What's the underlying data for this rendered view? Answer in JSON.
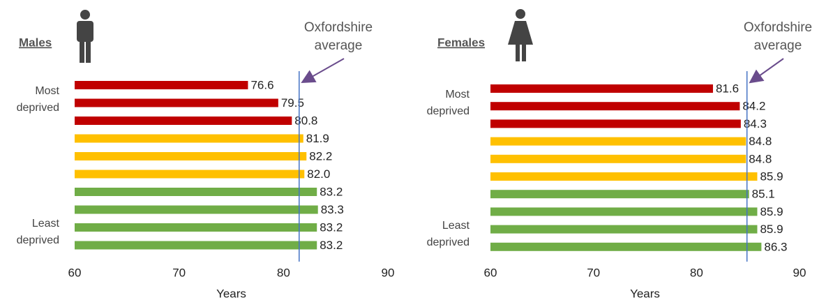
{
  "chart_data": [
    {
      "type": "bar",
      "orientation": "horizontal",
      "title": "Males",
      "categories": [
        null,
        null,
        null,
        null,
        null,
        null,
        null,
        null,
        null,
        null
      ],
      "values": [
        76.6,
        79.5,
        80.8,
        81.9,
        82.2,
        82.0,
        83.2,
        83.3,
        83.2,
        83.2
      ],
      "value_labels": [
        "76.6",
        "79.5",
        "80.8",
        "81.9",
        "82.2",
        "82.0",
        "83.2",
        "83.3",
        "83.2",
        "83.2"
      ],
      "colors": [
        "#c00000",
        "#c00000",
        "#c00000",
        "#ffc000",
        "#ffc000",
        "#ffc000",
        "#70ad47",
        "#70ad47",
        "#70ad47",
        "#70ad47"
      ],
      "top_label": [
        "Most",
        "deprived"
      ],
      "bottom_label": [
        "Least",
        "deprived"
      ],
      "reference_line": {
        "value": 81.5,
        "label": [
          "Oxfordshire",
          "average"
        ],
        "color": "#4472c4"
      },
      "xlim": [
        60,
        90
      ],
      "xticks": [
        60,
        70,
        80,
        90
      ],
      "xlabel": "Years"
    },
    {
      "type": "bar",
      "orientation": "horizontal",
      "title": "Females",
      "categories": [
        null,
        null,
        null,
        null,
        null,
        null,
        null,
        null,
        null,
        null
      ],
      "values": [
        81.6,
        84.2,
        84.3,
        84.8,
        84.8,
        85.9,
        85.1,
        85.9,
        85.9,
        86.3
      ],
      "value_labels": [
        "81.6",
        "84.2",
        "84.3",
        "84.8",
        "84.8",
        "85.9",
        "85.1",
        "85.9",
        "85.9",
        "86.3"
      ],
      "colors": [
        "#c00000",
        "#c00000",
        "#c00000",
        "#ffc000",
        "#ffc000",
        "#ffc000",
        "#70ad47",
        "#70ad47",
        "#70ad47",
        "#70ad47"
      ],
      "top_label": [
        "Most",
        "deprived"
      ],
      "bottom_label": [
        "Least",
        "deprived"
      ],
      "reference_line": {
        "value": 84.9,
        "label": [
          "Oxfordshire",
          "average"
        ],
        "color": "#4472c4"
      },
      "xlim": [
        60,
        90
      ],
      "xticks": [
        60,
        70,
        80,
        90
      ],
      "xlabel": "Years"
    }
  ]
}
